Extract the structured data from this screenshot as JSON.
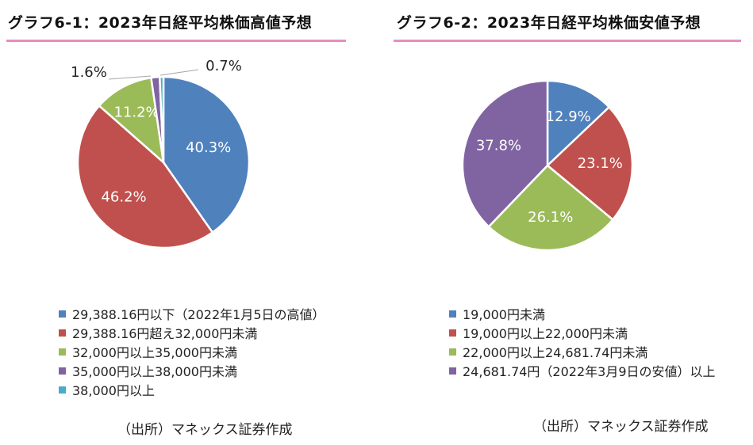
{
  "chart_data": [
    {
      "type": "pie",
      "title": "グラフ6-1：2023年日経平均株価高値予想",
      "categories": [
        "29,388.16円以下（2022年1月5日の高値）",
        "29,388.16円超え32,000円未満",
        "32,000円以上35,000円未満",
        "35,000円以上38,000円未満",
        "38,000円以上"
      ],
      "values": [
        40.3,
        46.2,
        11.2,
        1.6,
        0.7
      ],
      "data_labels": [
        "40.3%",
        "46.2%",
        "11.2%",
        "1.6%",
        "0.7%"
      ],
      "colors": [
        "#4f81bd",
        "#c0504d",
        "#9bbb59",
        "#8064a2",
        "#4bacc6"
      ],
      "legend_position": "bottom",
      "source": "（出所）マネックス証券作成"
    },
    {
      "type": "pie",
      "title": "グラフ6-2：2023年日経平均株価安値予想",
      "categories": [
        "19,000円未満",
        "19,000円以上22,000円未満",
        "22,000円以上24,681.74円未満",
        "24,681.74円（2022年3月9日の安値）以上"
      ],
      "values": [
        12.9,
        23.1,
        26.1,
        37.8
      ],
      "data_labels": [
        "12.9%",
        "23.1%",
        "26.1%",
        "37.8%"
      ],
      "colors": [
        "#4f81bd",
        "#c0504d",
        "#9bbb59",
        "#8064a2"
      ],
      "legend_position": "bottom",
      "source": "（出所）マネックス証券作成"
    }
  ]
}
